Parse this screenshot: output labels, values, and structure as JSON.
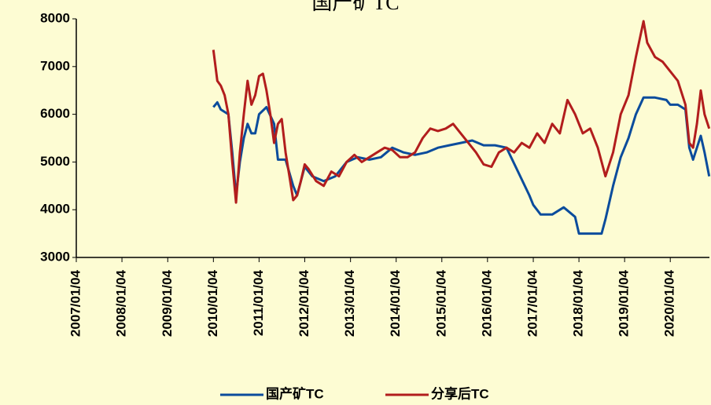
{
  "chart_data": {
    "type": "line",
    "title": "国产矿TC",
    "xlim": [
      "2007/01/04",
      "2020/11/12"
    ],
    "xticks": [
      "2007/01/04",
      "2008/01/04",
      "2009/01/04",
      "2010/01/04",
      "2011/01/04",
      "2012/01/04",
      "2013/01/04",
      "2014/01/04",
      "2015/01/04",
      "2016/01/04",
      "2017/01/04",
      "2018/01/04",
      "2019/01/04",
      "2020/01/04"
    ],
    "ylim": [
      3000,
      8000
    ],
    "yticks": [
      3000,
      4000,
      5000,
      6000,
      7000,
      8000
    ],
    "legend": "bottom",
    "series": [
      {
        "name": "国产矿TC",
        "color": "#0b4c9c",
        "x": [
          "2010/01/04",
          "2010/02/04",
          "2010/03/04",
          "2010/05/04",
          "2010/06/04",
          "2010/07/04",
          "2010/08/04",
          "2010/09/04",
          "2010/10/04",
          "2010/11/04",
          "2010/12/04",
          "2011/01/04",
          "2011/03/04",
          "2011/05/04",
          "2011/06/04",
          "2011/08/04",
          "2011/10/04",
          "2011/11/04",
          "2012/01/04",
          "2012/03/04",
          "2012/06/04",
          "2012/09/04",
          "2012/12/04",
          "2013/03/04",
          "2013/06/04",
          "2013/09/04",
          "2013/12/04",
          "2014/03/04",
          "2014/06/04",
          "2014/09/04",
          "2014/12/04",
          "2015/03/04",
          "2015/06/04",
          "2015/09/04",
          "2015/12/04",
          "2016/03/04",
          "2016/06/04",
          "2016/09/04",
          "2016/12/04",
          "2017/01/04",
          "2017/03/04",
          "2017/06/04",
          "2017/09/04",
          "2017/12/04",
          "2018/01/04",
          "2018/04/04",
          "2018/07/04",
          "2018/08/04",
          "2018/10/04",
          "2018/12/04",
          "2019/02/04",
          "2019/04/04",
          "2019/06/04",
          "2019/09/04",
          "2019/12/04",
          "2020/01/04",
          "2020/03/04",
          "2020/05/04",
          "2020/06/04",
          "2020/07/04",
          "2020/08/04",
          "2020/09/04",
          "2020/10/04",
          "2020/11/10"
        ],
        "values": [
          6150,
          6250,
          6100,
          6000,
          5200,
          4300,
          5000,
          5500,
          5800,
          5600,
          5600,
          6000,
          6150,
          5800,
          5050,
          5050,
          4500,
          4300,
          4900,
          4700,
          4600,
          4700,
          5000,
          5100,
          5050,
          5100,
          5300,
          5200,
          5150,
          5200,
          5300,
          5350,
          5400,
          5450,
          5350,
          5350,
          5300,
          4800,
          4300,
          4100,
          3900,
          3900,
          4050,
          3850,
          3500,
          3500,
          3500,
          3800,
          4500,
          5100,
          5500,
          6000,
          6350,
          6350,
          6300,
          6200,
          6200,
          6100,
          5300,
          5050,
          5300,
          5550,
          5200,
          4700
        ]
      },
      {
        "name": "分享后TC",
        "color": "#b21d1d",
        "x": [
          "2010/01/04",
          "2010/02/04",
          "2010/03/04",
          "2010/04/04",
          "2010/05/04",
          "2010/06/04",
          "2010/07/04",
          "2010/08/04",
          "2010/09/04",
          "2010/10/04",
          "2010/11/04",
          "2010/12/04",
          "2011/01/04",
          "2011/02/04",
          "2011/03/04",
          "2011/04/04",
          "2011/05/04",
          "2011/06/04",
          "2011/07/04",
          "2011/08/04",
          "2011/09/04",
          "2011/10/04",
          "2011/11/04",
          "2011/12/04",
          "2012/01/04",
          "2012/02/04",
          "2012/04/04",
          "2012/06/04",
          "2012/08/04",
          "2012/10/04",
          "2012/12/04",
          "2013/02/04",
          "2013/04/04",
          "2013/06/04",
          "2013/08/04",
          "2013/10/04",
          "2013/12/04",
          "2014/02/04",
          "2014/04/04",
          "2014/06/04",
          "2014/08/04",
          "2014/10/04",
          "2014/12/04",
          "2015/02/04",
          "2015/04/04",
          "2015/06/04",
          "2015/08/04",
          "2015/10/04",
          "2015/12/04",
          "2016/02/04",
          "2016/04/04",
          "2016/06/04",
          "2016/08/04",
          "2016/10/04",
          "2016/12/04",
          "2017/02/04",
          "2017/04/04",
          "2017/06/04",
          "2017/08/04",
          "2017/10/04",
          "2017/12/04",
          "2018/02/04",
          "2018/04/04",
          "2018/06/04",
          "2018/08/04",
          "2018/10/04",
          "2018/12/04",
          "2019/02/04",
          "2019/04/04",
          "2019/06/04",
          "2019/07/04",
          "2019/09/04",
          "2019/11/04",
          "2020/01/04",
          "2020/03/04",
          "2020/05/04",
          "2020/06/04",
          "2020/07/04",
          "2020/08/04",
          "2020/09/04",
          "2020/10/04",
          "2020/11/10"
        ],
        "values": [
          7350,
          6700,
          6600,
          6400,
          6000,
          5000,
          4150,
          5200,
          6000,
          6700,
          6200,
          6400,
          6800,
          6850,
          6500,
          6000,
          5400,
          5800,
          5900,
          5200,
          4700,
          4200,
          4300,
          4600,
          4950,
          4850,
          4600,
          4500,
          4800,
          4700,
          5000,
          5150,
          5000,
          5100,
          5200,
          5300,
          5250,
          5100,
          5100,
          5200,
          5500,
          5700,
          5650,
          5700,
          5800,
          5600,
          5400,
          5200,
          4950,
          4900,
          5200,
          5300,
          5200,
          5400,
          5300,
          5600,
          5400,
          5800,
          5600,
          6300,
          6000,
          5600,
          5700,
          5300,
          4700,
          5200,
          6000,
          6400,
          7200,
          7950,
          7500,
          7200,
          7100,
          6900,
          6700,
          6200,
          5400,
          5300,
          5800,
          6500,
          6000,
          5700
        ]
      }
    ]
  }
}
